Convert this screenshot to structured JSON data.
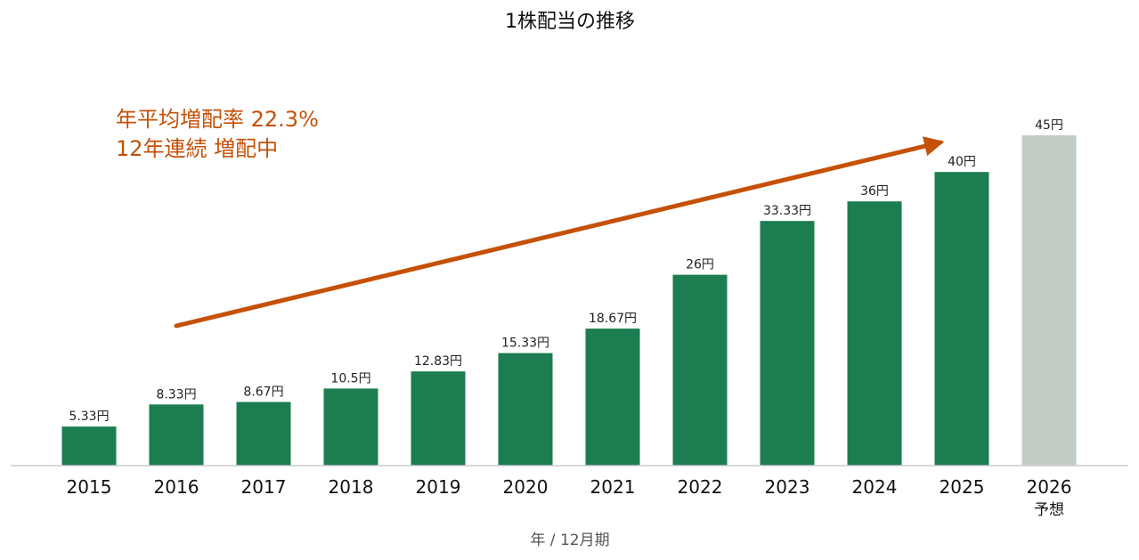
{
  "chart_data": {
    "type": "bar",
    "title": "1株配当の推移",
    "xlabel": "年 / 12月期",
    "ylabel": "",
    "unit": "円",
    "categories": [
      "2015",
      "2016",
      "2017",
      "2018",
      "2019",
      "2020",
      "2021",
      "2022",
      "2023",
      "2024",
      "2025",
      "2026"
    ],
    "category_sublabels": [
      "",
      "",
      "",
      "",
      "",
      "",
      "",
      "",
      "",
      "",
      "",
      "予想"
    ],
    "values": [
      5.33,
      8.33,
      8.67,
      10.5,
      12.83,
      15.33,
      18.67,
      26,
      33.33,
      36,
      40,
      45
    ],
    "value_labels": [
      "5.33円",
      "8.33円",
      "8.67円",
      "10.5円",
      "12.83円",
      "15.33円",
      "18.67円",
      "26円",
      "33.33円",
      "36円",
      "40円",
      "45円"
    ],
    "forecast": [
      false,
      false,
      false,
      false,
      false,
      false,
      false,
      false,
      false,
      false,
      false,
      true
    ],
    "ylim": [
      0,
      45
    ],
    "grid": false,
    "colors": {
      "actual": "#1b7d50",
      "forecast": "#c3cdc6",
      "annotation": "#c55108",
      "axis": "#cccccc"
    },
    "annotation": {
      "lines": [
        "年平均増配率 22.3%",
        "12年連続 増配中"
      ],
      "arrow_from_category": "2016",
      "arrow_to_category": "2025"
    }
  }
}
